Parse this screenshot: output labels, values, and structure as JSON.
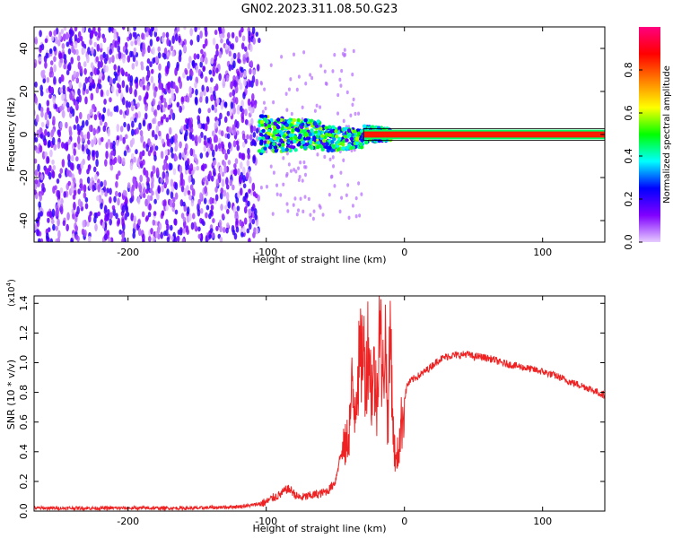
{
  "title": "GN02.2023.311.08.50.G23",
  "chart_data": [
    {
      "type": "heatmap",
      "name": "spectrogram",
      "xlabel": "Height of straight line (km)",
      "ylabel": "Frequency (Hz)",
      "xlim": [
        -268,
        145
      ],
      "ylim": [
        -50,
        50
      ],
      "xticks": [
        -200,
        -100,
        0,
        100
      ],
      "xtick_labels": [
        "-200",
        "-100",
        "0",
        "100"
      ],
      "yticks": [
        -40,
        -20,
        0,
        20,
        40
      ],
      "ytick_labels": [
        "-40",
        "-20",
        "0",
        "20",
        "40"
      ],
      "colorbar": {
        "label": "Normalized spectral amplitude",
        "range": [
          0,
          1
        ],
        "ticks": [
          0,
          0.2,
          0.4,
          0.6,
          0.8
        ],
        "tick_labels": [
          "0.0",
          "0.2",
          "0.4",
          "0.6",
          "0.8"
        ],
        "colors": [
          "#e6ccff",
          "#8000ff",
          "#0000ff",
          "#00ffff",
          "#00ff00",
          "#ffff00",
          "#ff8000",
          "#ff0000",
          "#ff0080"
        ]
      },
      "regions": [
        {
          "x_range": [
            -268,
            -105
          ],
          "y_range": [
            -50,
            50
          ],
          "amplitude": 0.1
        },
        {
          "x_range": [
            -105,
            -10
          ],
          "y_range": [
            -10,
            10
          ],
          "amplitude": 0.35
        },
        {
          "x_range": [
            -10,
            145
          ],
          "y_range": [
            -1,
            1
          ],
          "amplitude": 0.85
        }
      ],
      "grid": false
    },
    {
      "type": "line",
      "name": "snr",
      "xlabel": "Height of straight line (km)",
      "ylabel": "SNR (10 * v/v)",
      "multiplier_label": "(x10",
      "multiplier_exp": "4",
      "multiplier_close": ")",
      "xlim": [
        -268,
        145
      ],
      "ylim": [
        0,
        1.45
      ],
      "xticks": [
        -200,
        -100,
        0,
        100
      ],
      "xtick_labels": [
        "-200",
        "-100",
        "0",
        "100"
      ],
      "yticks": [
        0,
        0.2,
        0.4,
        0.6,
        0.8,
        1.0,
        1.2,
        1.4
      ],
      "ytick_labels": [
        "0.0",
        "0.2",
        "0.4",
        "0.6",
        "0.8",
        "1.0",
        "1.2",
        "1.4"
      ],
      "color": "#ee2222",
      "series": [
        {
          "x": [
            -268,
            -250,
            -220,
            -200,
            -180,
            -150,
            -120,
            -110,
            -100,
            -95,
            -90,
            -85,
            -82,
            -78,
            -75,
            -70,
            -65,
            -60,
            -55,
            -50,
            -47,
            -45,
            -42,
            -40,
            -38,
            -36,
            -34,
            -32,
            -30,
            -28,
            -26,
            -24,
            -22,
            -20,
            -18,
            -16,
            -14,
            -12,
            -10,
            -8,
            -6,
            -4,
            -2,
            0,
            2,
            5,
            8,
            12,
            16,
            20,
            25,
            30,
            35,
            40,
            45,
            50,
            55,
            60,
            65,
            70,
            80,
            90,
            100,
            110,
            120,
            130,
            140,
            145
          ],
          "y": [
            0.02,
            0.02,
            0.02,
            0.02,
            0.02,
            0.02,
            0.03,
            0.04,
            0.06,
            0.09,
            0.11,
            0.15,
            0.14,
            0.1,
            0.09,
            0.1,
            0.11,
            0.12,
            0.14,
            0.2,
            0.35,
            0.4,
            0.45,
            0.55,
            0.8,
            0.7,
            0.92,
            1.0,
            1.12,
            0.9,
            1.18,
            0.8,
            0.95,
            0.7,
            1.45,
            0.8,
            1.22,
            0.6,
            1.25,
            0.5,
            0.3,
            0.45,
            0.6,
            0.75,
            0.85,
            0.88,
            0.9,
            0.92,
            0.95,
            0.98,
            1.02,
            1.04,
            1.05,
            1.05,
            1.06,
            1.04,
            1.04,
            1.03,
            1.02,
            1.0,
            0.98,
            0.96,
            0.94,
            0.91,
            0.87,
            0.84,
            0.8,
            0.78
          ]
        }
      ],
      "grid": false
    }
  ]
}
